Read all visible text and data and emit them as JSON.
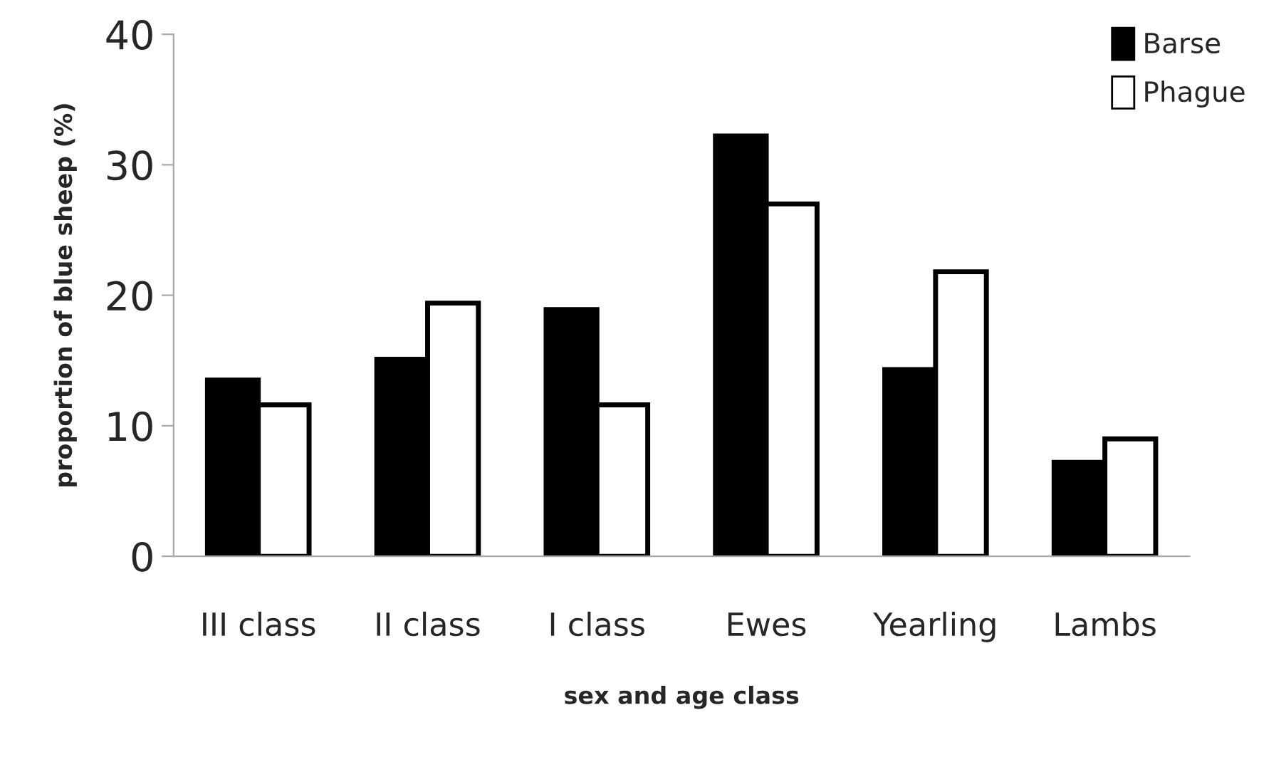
{
  "chart_data": {
    "type": "bar",
    "xlabel": "sex and age class",
    "ylabel": "proportion of blue sheep (%)",
    "categories": [
      "III class",
      "II class",
      "I class",
      "Ewes",
      "Yearling",
      "Lambs"
    ],
    "series": [
      {
        "name": "Barse",
        "color": "#000000",
        "values": [
          13.5,
          15.1,
          18.9,
          32.2,
          14.3,
          7.2
        ]
      },
      {
        "name": "Phague",
        "color": "#ffffff",
        "values": [
          11.6,
          19.4,
          11.6,
          27.0,
          21.8,
          9.0
        ]
      }
    ],
    "ylim": [
      0,
      40
    ],
    "yticks": [
      0,
      10,
      20,
      30,
      40
    ],
    "grid": false,
    "legend": "top right"
  }
}
